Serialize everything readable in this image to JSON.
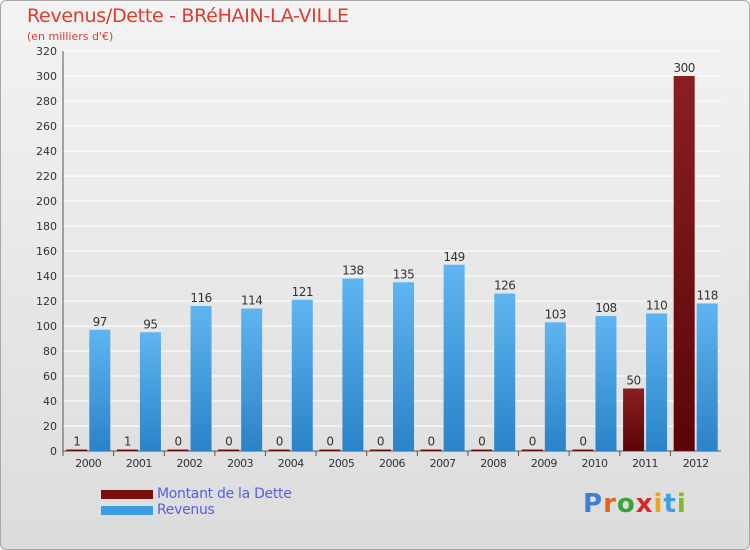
{
  "colors": {
    "dette": "#7a0f12",
    "revenus": "#3d9ee3",
    "text": "#dd3b2e",
    "legend_text": "#5560e0"
  },
  "chart_data": {
    "type": "bar",
    "title": "Revenus/Dette - BRéHAIN-LA-VILLE",
    "subtitle": "(en milliers d'€)",
    "categories": [
      "2000",
      "2001",
      "2002",
      "2003",
      "2004",
      "2005",
      "2006",
      "2007",
      "2008",
      "2009",
      "2010",
      "2011",
      "2012"
    ],
    "series": [
      {
        "name": "Montant de la Dette",
        "values": [
          1,
          1,
          0,
          0,
          0,
          0,
          0,
          0,
          0,
          0,
          0,
          50,
          300
        ]
      },
      {
        "name": "Revenus",
        "values": [
          97,
          95,
          116,
          114,
          121,
          138,
          135,
          149,
          126,
          103,
          108,
          110,
          118
        ]
      }
    ],
    "ylim": [
      0,
      320
    ],
    "yticks": [
      0,
      20,
      40,
      60,
      80,
      100,
      120,
      140,
      160,
      180,
      200,
      220,
      240,
      260,
      280,
      300,
      320
    ],
    "grid": true,
    "legend": "bottom-left"
  },
  "logo": {
    "text": "Proxiti",
    "letters": [
      "P",
      "r",
      "o",
      "x",
      "i",
      "t",
      "i"
    ]
  }
}
